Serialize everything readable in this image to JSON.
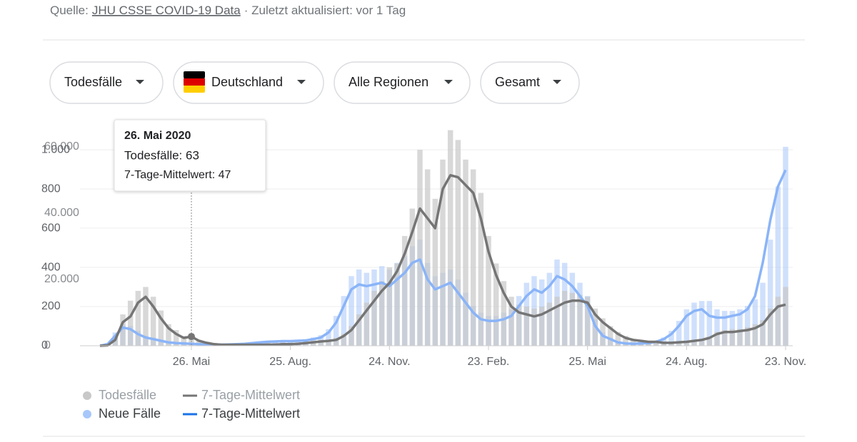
{
  "header": {
    "source_prefix": "Quelle:",
    "source_link": "JHU CSSE COVID-19 Data",
    "updated": "· Zuletzt aktualisiert: vor 1 Tag"
  },
  "filters": [
    "Todesfälle",
    "Deutschland",
    "Alle Regionen",
    "Gesamt"
  ],
  "tooltip": {
    "date": "26. Mai 2020",
    "lines": [
      "Todesfälle: 63",
      "7-Tage-Mittelwert: 47"
    ]
  },
  "chart_data": {
    "type": "bar_line",
    "categories": [
      null,
      null,
      null,
      null,
      null,
      null,
      null,
      null,
      null,
      null,
      null,
      null,
      "26. Mai",
      null,
      null,
      null,
      null,
      null,
      null,
      null,
      null,
      null,
      null,
      null,
      null,
      "25. Aug.",
      null,
      null,
      null,
      null,
      null,
      null,
      null,
      null,
      null,
      null,
      null,
      null,
      "24. Nov.",
      null,
      null,
      null,
      null,
      null,
      null,
      null,
      null,
      null,
      null,
      null,
      null,
      "23. Feb.",
      null,
      null,
      null,
      null,
      null,
      null,
      null,
      null,
      null,
      null,
      null,
      null,
      "25. Mai",
      null,
      null,
      null,
      null,
      null,
      null,
      null,
      null,
      null,
      null,
      null,
      null,
      "24. Aug.",
      null,
      null,
      null,
      null,
      null,
      null,
      null,
      null,
      null,
      null,
      null,
      null,
      "23. Nov."
    ],
    "ylim": [
      0,
      1164
    ],
    "yticks": [
      0,
      200,
      400,
      600,
      800,
      {
        "value": 1000,
        "label": "1.000"
      }
    ],
    "y2lim": [
      0,
      68800
    ],
    "y2ticks": [
      0,
      {
        "value": 20000,
        "label": "20.000"
      },
      {
        "value": 40000,
        "label": "40.000"
      },
      {
        "value": 60000,
        "label": "60.000"
      }
    ],
    "grid": true,
    "series": [
      {
        "name": "Todesfälle",
        "kind": "bar",
        "color": "#c8c8c8",
        "values": [
          0,
          5,
          50,
          160,
          230,
          280,
          300,
          250,
          180,
          110,
          80,
          50,
          63,
          30,
          20,
          10,
          8,
          6,
          6,
          6,
          6,
          7,
          7,
          9,
          10,
          12,
          14,
          18,
          25,
          30,
          25,
          40,
          60,
          100,
          160,
          220,
          280,
          330,
          400,
          420,
          560,
          700,
          1000,
          900,
          750,
          950,
          1100,
          1050,
          950,
          900,
          780,
          560,
          420,
          330,
          250,
          210,
          200,
          190,
          200,
          220,
          250,
          280,
          270,
          260,
          250,
          190,
          140,
          100,
          70,
          50,
          35,
          30,
          25,
          22,
          20,
          18,
          20,
          25,
          30,
          35,
          45,
          70,
          80,
          85,
          85,
          95,
          110,
          130,
          190,
          250,
          300
        ]
      },
      {
        "name": "7-Tage-Mittelwert",
        "kind": "line",
        "color": "#757575",
        "values": [
          0,
          2,
          30,
          120,
          150,
          220,
          250,
          200,
          140,
          90,
          60,
          40,
          47,
          25,
          15,
          8,
          5,
          5,
          5,
          5,
          5,
          5,
          6,
          6,
          8,
          8,
          10,
          14,
          18,
          22,
          25,
          30,
          50,
          80,
          130,
          180,
          230,
          280,
          320,
          380,
          470,
          580,
          700,
          650,
          600,
          800,
          870,
          860,
          820,
          780,
          650,
          480,
          360,
          270,
          200,
          170,
          160,
          150,
          160,
          180,
          200,
          220,
          230,
          230,
          220,
          160,
          120,
          90,
          60,
          40,
          30,
          25,
          20,
          20,
          15,
          15,
          18,
          20,
          25,
          30,
          40,
          60,
          70,
          70,
          75,
          80,
          90,
          110,
          160,
          200,
          210
        ]
      },
      {
        "name": "Neue Fälle",
        "kind": "bar",
        "axis": "y2",
        "color": "#a8c7fa",
        "values": [
          0,
          800,
          4000,
          6500,
          6000,
          4500,
          3000,
          2500,
          1800,
          1200,
          900,
          800,
          700,
          600,
          500,
          500,
          450,
          500,
          600,
          700,
          1000,
          1200,
          1400,
          1500,
          1600,
          1700,
          1800,
          2000,
          2500,
          3200,
          5000,
          9000,
          15000,
          21000,
          23000,
          22000,
          23000,
          24000,
          23000,
          25000,
          27000,
          30000,
          32000,
          25000,
          21000,
          22000,
          23000,
          20000,
          16000,
          12000,
          10000,
          9000,
          9000,
          10000,
          11000,
          15000,
          19000,
          21000,
          20000,
          22000,
          26000,
          25000,
          22000,
          19000,
          15000,
          8000,
          4000,
          2500,
          1300,
          900,
          800,
          900,
          1000,
          1500,
          2500,
          4500,
          7500,
          11000,
          13000,
          13500,
          13500,
          11000,
          10500,
          10500,
          11000,
          12000,
          14000,
          19000,
          32000,
          48000,
          60000
        ]
      },
      {
        "name": "7-Tage-Mittelwert",
        "kind": "line",
        "axis": "y2",
        "color": "#8ab4f8",
        "values": [
          0,
          500,
          3000,
          5500,
          5000,
          3500,
          2500,
          2000,
          1500,
          1000,
          800,
          700,
          600,
          500,
          400,
          400,
          350,
          400,
          500,
          600,
          800,
          1000,
          1200,
          1300,
          1400,
          1400,
          1500,
          1600,
          2000,
          2500,
          4000,
          7000,
          12000,
          17000,
          18500,
          18000,
          18500,
          19000,
          18000,
          20000,
          22000,
          25000,
          26000,
          20000,
          17000,
          18000,
          19000,
          16000,
          13000,
          10000,
          8000,
          7500,
          7500,
          8000,
          9000,
          12000,
          15000,
          17000,
          16000,
          18000,
          21000,
          20000,
          18000,
          15000,
          12000,
          6000,
          3000,
          2000,
          1000,
          700,
          600,
          700,
          800,
          1200,
          2000,
          3500,
          6000,
          9000,
          10500,
          11000,
          9000,
          8500,
          8500,
          9000,
          9500,
          11000,
          15000,
          25000,
          38000,
          48000,
          53000
        ]
      }
    ]
  }
}
